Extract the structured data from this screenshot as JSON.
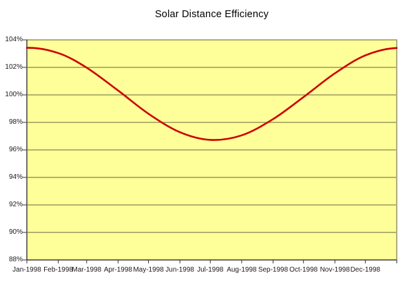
{
  "chart_data": {
    "type": "line",
    "title": "Solar Distance Efficiency",
    "xlabel": "",
    "ylabel": "",
    "ylim": [
      88,
      104
    ],
    "y_step": 2,
    "y_tick_labels": [
      "104%",
      "102%",
      "100%",
      "98%",
      "96%",
      "94%",
      "92%",
      "90%",
      "88%"
    ],
    "x_tick_labels": [
      "Jan-1998",
      "Feb-1998",
      "Mar-1998",
      "Apr-1998",
      "May-1998",
      "Jun-1998",
      "Jul-1998",
      "Aug-1998",
      "Sep-1998",
      "Oct-1998",
      "Nov-1998",
      "Dec-1998"
    ],
    "x_total_days": 365,
    "x_tick_days": [
      0,
      31,
      59,
      90,
      120,
      151,
      181,
      212,
      243,
      273,
      304,
      334,
      365
    ],
    "grid": "horizontal",
    "legend": "none",
    "series": [
      {
        "name": "Solar Distance Efficiency",
        "color": "#cc0000",
        "points": [
          {
            "day": 0,
            "value": 103.42
          },
          {
            "day": 31,
            "value": 103.04
          },
          {
            "day": 59,
            "value": 101.98
          },
          {
            "day": 90,
            "value": 100.32
          },
          {
            "day": 120,
            "value": 98.63
          },
          {
            "day": 151,
            "value": 97.29
          },
          {
            "day": 181,
            "value": 96.73
          },
          {
            "day": 212,
            "value": 97.06
          },
          {
            "day": 243,
            "value": 98.24
          },
          {
            "day": 273,
            "value": 99.84
          },
          {
            "day": 304,
            "value": 101.57
          },
          {
            "day": 334,
            "value": 102.87
          },
          {
            "day": 365,
            "value": 103.41
          }
        ],
        "max_value": 103.42,
        "min_value": 96.72
      }
    ],
    "colors": {
      "plot_background": "#ffff99",
      "page_background": "#ffffff",
      "plot_border": "#8b8b5e",
      "gridline": "#666644",
      "axis": "#333333",
      "tick_label": "#1a1a1a",
      "title": "#000000",
      "line": "#cc0000"
    }
  }
}
